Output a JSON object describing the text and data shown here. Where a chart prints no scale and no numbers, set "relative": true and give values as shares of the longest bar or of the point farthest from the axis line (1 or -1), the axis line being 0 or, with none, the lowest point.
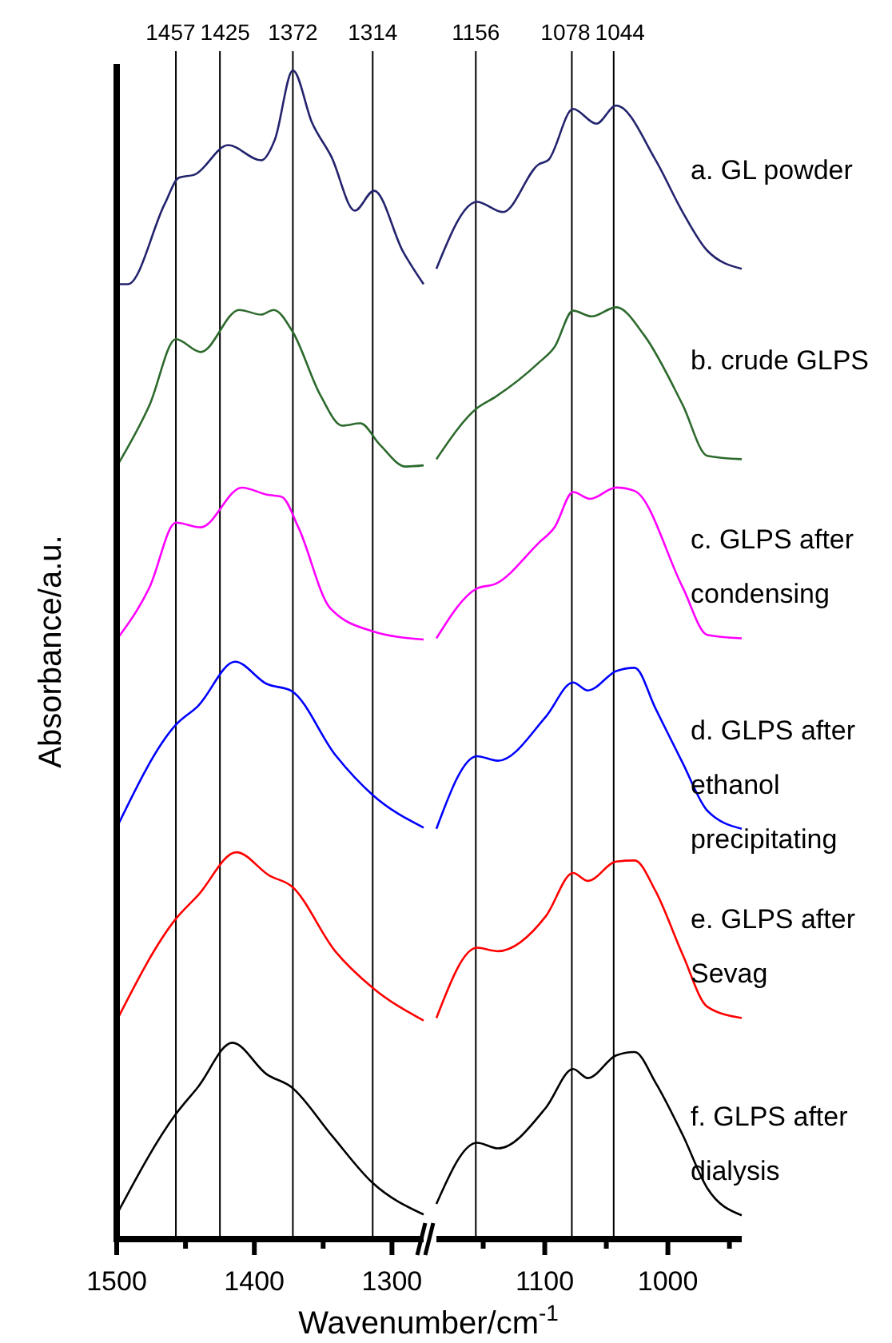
{
  "chart_data": [
    {
      "type": "line",
      "relative": true,
      "ylabel": "Absorbance/a.u.",
      "xlim": [
        1500,
        1277
      ],
      "xticks": [
        1500,
        {
          "value": 1450,
          "label": null
        },
        1400,
        {
          "value": 1350,
          "label": null
        },
        1300
      ],
      "ref_lines": [
        {
          "axis": "x",
          "value": 1457,
          "label": "1457"
        },
        {
          "axis": "x",
          "value": 1425,
          "label": "1425"
        },
        {
          "axis": "x",
          "value": 1372,
          "label": "1372"
        },
        {
          "axis": "x",
          "value": 1314,
          "label": "1314"
        }
      ],
      "series": [
        {
          "color": "#23236e",
          "x": [
            1500,
            1492,
            1465,
            1455,
            1443,
            1419,
            1395,
            1385,
            1372,
            1358,
            1344,
            1327,
            1313,
            1292,
            1277
          ],
          "values": [
            0.817,
            0.817,
            0.886,
            0.908,
            0.911,
            0.936,
            0.923,
            0.941,
            1,
            0.955,
            0.926,
            0.88,
            0.897,
            0.845,
            0.817
          ]
        },
        {
          "color": "#2d6a2d",
          "x": [
            1500,
            1476,
            1457,
            1439,
            1411,
            1395,
            1386,
            1372,
            1352,
            1336,
            1323,
            1309,
            1290,
            1277
          ],
          "values": [
            0.661,
            0.714,
            0.77,
            0.759,
            0.795,
            0.791,
            0.795,
            0.776,
            0.722,
            0.696,
            0.698,
            0.68,
            0.661,
            0.662
          ]
        },
        {
          "color": "#ff00ff",
          "x": [
            1500,
            1476,
            1457,
            1439,
            1409,
            1391,
            1380,
            1368,
            1345,
            1314,
            1277
          ],
          "values": [
            0.513,
            0.558,
            0.613,
            0.609,
            0.643,
            0.637,
            0.635,
            0.609,
            0.54,
            0.52,
            0.513
          ]
        },
        {
          "color": "#0000ff",
          "x": [
            1500,
            1457,
            1441,
            1414,
            1391,
            1373,
            1341,
            1314,
            1277
          ],
          "values": [
            0.352,
            0.44,
            0.456,
            0.494,
            0.475,
            0.469,
            0.414,
            0.38,
            0.352
          ]
        },
        {
          "color": "#ff0000",
          "x": [
            1500,
            1457,
            1441,
            1413,
            1389,
            1373,
            1341,
            1314,
            1277
          ],
          "values": [
            0.187,
            0.274,
            0.294,
            0.331,
            0.311,
            0.302,
            0.246,
            0.215,
            0.187
          ]
        },
        {
          "color": "#000000",
          "x": [
            1500,
            1457,
            1441,
            1416,
            1391,
            1373,
            1344,
            1314,
            1277
          ],
          "values": [
            0.021,
            0.107,
            0.13,
            0.168,
            0.141,
            0.13,
            0.089,
            0.048,
            0.021
          ]
        }
      ]
    },
    {
      "type": "line",
      "relative": true,
      "xlabel": "Wavenumber/cm$^{-1}$",
      "xlim": [
        1188,
        940
      ],
      "xticks": [
        {
          "value": 1150,
          "label": null
        },
        1100,
        {
          "value": 1050,
          "label": null
        },
        1000,
        {
          "value": 950,
          "label": null
        }
      ],
      "ref_lines": [
        {
          "axis": "x",
          "value": 1156,
          "label": "1156"
        },
        {
          "axis": "x",
          "value": 1078,
          "label": "1078"
        },
        {
          "axis": "x",
          "value": 1044,
          "label": "1044"
        }
      ],
      "series": [
        {
          "name": "a. GL powder",
          "color": "#23236e",
          "x": [
            1188,
            1155,
            1134,
            1105,
            1097,
            1077,
            1058,
            1042,
            1010,
            988,
            968,
            940
          ],
          "values": [
            0.856,
            0.915,
            0.906,
            0.948,
            0.952,
            0.997,
            0.984,
            1,
            0.952,
            0.906,
            0.872,
            0.856
          ]
        },
        {
          "name": "b. crude GLPS",
          "color": "#2d6a2d",
          "x": [
            1188,
            1155,
            1140,
            1105,
            1092,
            1077,
            1062,
            1042,
            1019,
            988,
            968,
            940
          ],
          "values": [
            0.688,
            0.733,
            0.743,
            0.773,
            0.787,
            0.819,
            0.814,
            0.822,
            0.797,
            0.736,
            0.691,
            0.688
          ]
        },
        {
          "name": "c. GLPS after condensing",
          "color": "#ff00ff",
          "x": [
            1188,
            1155,
            1140,
            1105,
            1092,
            1077,
            1063,
            1042,
            1027,
            988,
            968,
            940
          ],
          "values": [
            0.53,
            0.574,
            0.578,
            0.614,
            0.628,
            0.659,
            0.653,
            0.663,
            0.66,
            0.575,
            0.533,
            0.53
          ]
        },
        {
          "name": "d. GLPS after ethanol precipitating",
          "color": "#0000ff",
          "x": [
            1188,
            1155,
            1138,
            1099,
            1077,
            1065,
            1042,
            1027,
            1010,
            988,
            968,
            940
          ],
          "values": [
            0.362,
            0.426,
            0.422,
            0.461,
            0.491,
            0.484,
            0.501,
            0.504,
            0.468,
            0.42,
            0.378,
            0.362
          ]
        },
        {
          "name": "e. GLPS after Sevag",
          "color": "#ff0000",
          "x": [
            1188,
            1155,
            1138,
            1099,
            1077,
            1065,
            1042,
            1027,
            1010,
            988,
            968,
            940
          ],
          "values": [
            0.195,
            0.257,
            0.254,
            0.285,
            0.323,
            0.316,
            0.333,
            0.334,
            0.307,
            0.251,
            0.205,
            0.195
          ]
        },
        {
          "name": "f. GLPS after dialysis",
          "color": "#000000",
          "x": [
            1188,
            1155,
            1138,
            1099,
            1077,
            1065,
            1042,
            1027,
            1010,
            988,
            968,
            940
          ],
          "values": [
            0.031,
            0.085,
            0.08,
            0.116,
            0.15,
            0.142,
            0.162,
            0.165,
            0.138,
            0.092,
            0.045,
            0.021
          ]
        }
      ]
    }
  ]
}
